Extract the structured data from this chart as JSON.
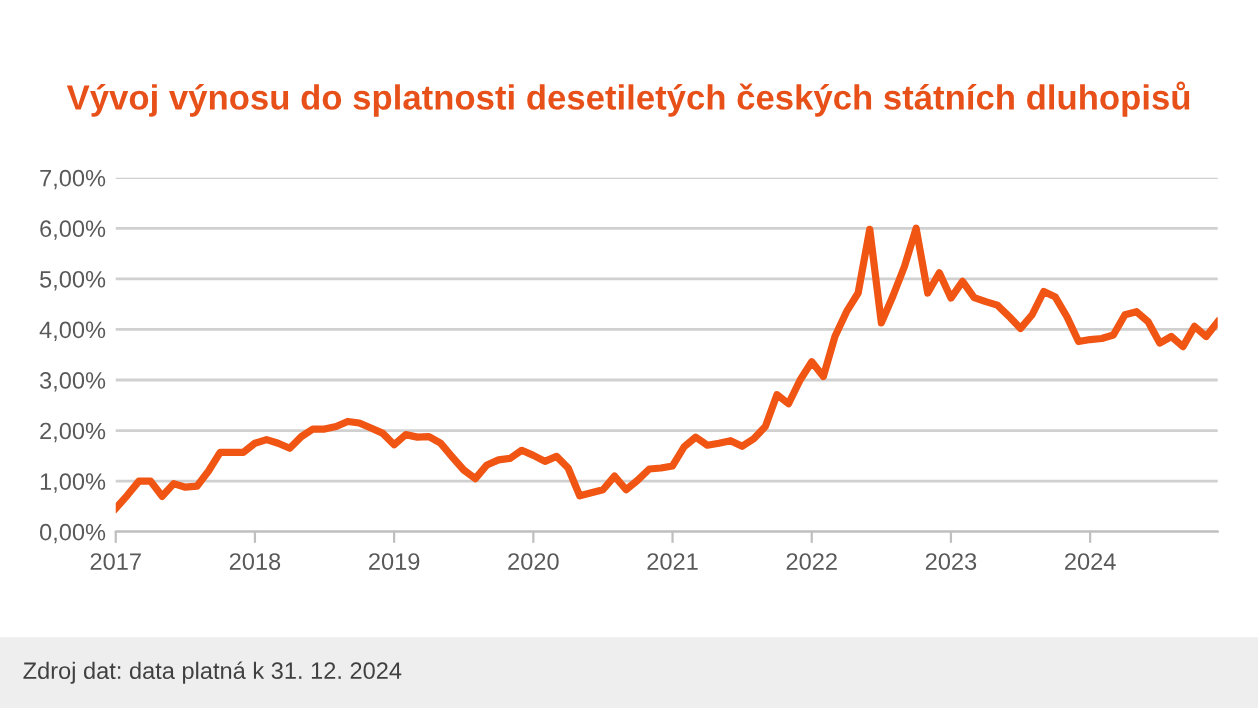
{
  "chart_data": {
    "type": "line",
    "title": "Vývoj výnosu do splatnosti desetiletých českých státních dluhopisů",
    "x": [
      "2017-01",
      "2017-02",
      "2017-03",
      "2017-04",
      "2017-05",
      "2017-06",
      "2017-07",
      "2017-08",
      "2017-09",
      "2017-10",
      "2017-11",
      "2017-12",
      "2018-01",
      "2018-02",
      "2018-03",
      "2018-04",
      "2018-05",
      "2018-06",
      "2018-07",
      "2018-08",
      "2018-09",
      "2018-10",
      "2018-11",
      "2018-12",
      "2019-01",
      "2019-02",
      "2019-03",
      "2019-04",
      "2019-05",
      "2019-06",
      "2019-07",
      "2019-08",
      "2019-09",
      "2019-10",
      "2019-11",
      "2019-12",
      "2020-01",
      "2020-02",
      "2020-03",
      "2020-04",
      "2020-05",
      "2020-06",
      "2020-07",
      "2020-08",
      "2020-09",
      "2020-10",
      "2020-11",
      "2020-12",
      "2021-01",
      "2021-02",
      "2021-03",
      "2021-04",
      "2021-05",
      "2021-06",
      "2021-07",
      "2021-08",
      "2021-09",
      "2021-10",
      "2021-11",
      "2021-12",
      "2022-01",
      "2022-02",
      "2022-03",
      "2022-04",
      "2022-05",
      "2022-06",
      "2022-07",
      "2022-08",
      "2022-09",
      "2022-10",
      "2022-11",
      "2022-12",
      "2023-01",
      "2023-02",
      "2023-03",
      "2023-04",
      "2023-05",
      "2023-06",
      "2023-07",
      "2023-08",
      "2023-09",
      "2023-10",
      "2023-11",
      "2023-12",
      "2024-01",
      "2024-02",
      "2024-03",
      "2024-04",
      "2024-05",
      "2024-06",
      "2024-07",
      "2024-08",
      "2024-09",
      "2024-10",
      "2024-11",
      "2024-12"
    ],
    "series": [
      {
        "color": "#f05514",
        "values": [
          0.46,
          0.72,
          1.0,
          1.0,
          0.7,
          0.95,
          0.88,
          0.9,
          1.2,
          1.57,
          1.57,
          1.57,
          1.75,
          1.82,
          1.75,
          1.65,
          1.88,
          2.03,
          2.03,
          2.08,
          2.18,
          2.15,
          2.05,
          1.95,
          1.72,
          1.92,
          1.87,
          1.88,
          1.75,
          1.48,
          1.22,
          1.05,
          1.32,
          1.42,
          1.45,
          1.61,
          1.51,
          1.39,
          1.49,
          1.26,
          0.71,
          0.77,
          0.83,
          1.1,
          0.83,
          1.02,
          1.24,
          1.26,
          1.3,
          1.68,
          1.87,
          1.71,
          1.75,
          1.8,
          1.69,
          1.84,
          2.08,
          2.71,
          2.53,
          3.0,
          3.36,
          3.07,
          3.86,
          4.35,
          4.72,
          5.98,
          4.13,
          4.66,
          5.25,
          6.0,
          4.72,
          5.12,
          4.62,
          4.95,
          4.63,
          4.55,
          4.48,
          4.26,
          4.02,
          4.29,
          4.75,
          4.64,
          4.25,
          3.76,
          3.8,
          3.82,
          3.89,
          4.29,
          4.35,
          4.15,
          3.73,
          3.86,
          3.66,
          4.06,
          3.86,
          4.15
        ]
      }
    ],
    "xlim": [
      "2017-01",
      "2024-12"
    ],
    "xticks": [
      {
        "value": "2017",
        "label": "2017"
      },
      {
        "value": "2018",
        "label": "2018"
      },
      {
        "value": "2019",
        "label": "2019"
      },
      {
        "value": "2020",
        "label": "2020"
      },
      {
        "value": "2021",
        "label": "2021"
      },
      {
        "value": "2022",
        "label": "2022"
      },
      {
        "value": "2023",
        "label": "2023"
      },
      {
        "value": "2024",
        "label": "2024"
      }
    ],
    "ylim": [
      0,
      7
    ],
    "yticks": [
      {
        "value": 0,
        "label": "0,00%"
      },
      {
        "value": 1,
        "label": "1,00%"
      },
      {
        "value": 2,
        "label": "2,00%"
      },
      {
        "value": 3,
        "label": "3,00%"
      },
      {
        "value": 4,
        "label": "4,00%"
      },
      {
        "value": 5,
        "label": "5,00%"
      },
      {
        "value": 6,
        "label": "6,00%"
      },
      {
        "value": 7,
        "label": "7,00%"
      }
    ],
    "grid": "y",
    "marker": "none",
    "line_style": "solid",
    "annotations": [
      "Zdroj dat: data platná k 31. 12. 2024"
    ]
  }
}
